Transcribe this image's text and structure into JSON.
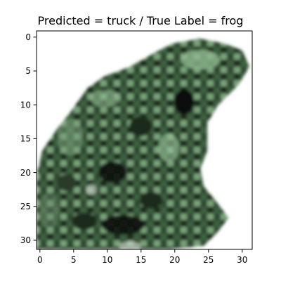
{
  "figure": {
    "title": "Predicted = truck / True Label = frog",
    "image_description": "blurry 32x32 pixel image of a mottled green and black frog on a white background",
    "x_ticks": [
      "0",
      "5",
      "10",
      "15",
      "20",
      "25",
      "30"
    ],
    "y_ticks": [
      "0",
      "5",
      "10",
      "15",
      "20",
      "25",
      "30"
    ],
    "pixel_grid": [
      32,
      32
    ],
    "colors": {
      "background": "#ffffff",
      "frog_light": "#8fb98f",
      "frog_mid": "#4f7a50",
      "frog_dark": "#1e2a1e",
      "frog_black": "#0d100d"
    }
  }
}
